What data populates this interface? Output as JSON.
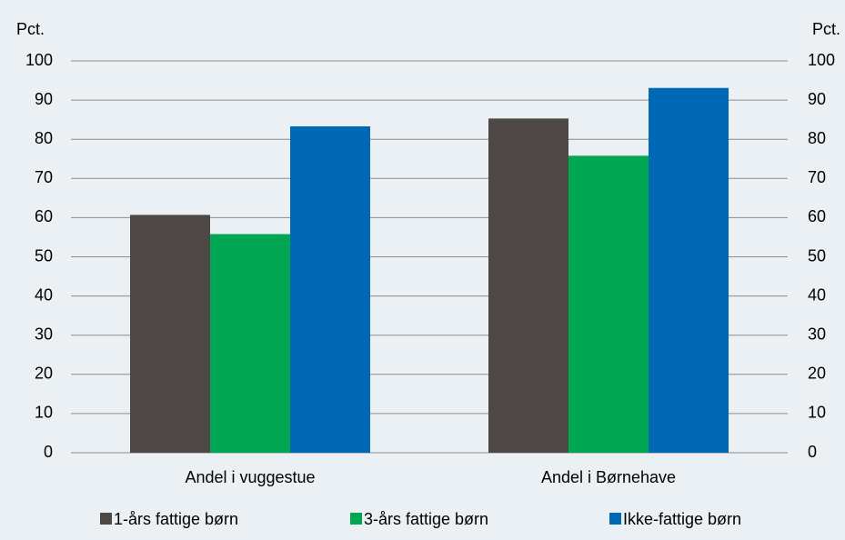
{
  "chart_data": {
    "type": "bar",
    "ylabel": "Pct.",
    "y2label": "Pct.",
    "categories": [
      "Andel i vuggestue",
      "Andel i Børnehave"
    ],
    "series": [
      {
        "name": "1-års fattige børn",
        "color": "#4d4845",
        "values": [
          60.7,
          85.3
        ]
      },
      {
        "name": "3-års fattige børn",
        "color": "#00a651",
        "values": [
          55.8,
          75.8
        ]
      },
      {
        "name": "Ikke-fattige børn",
        "color": "#0068b4",
        "values": [
          83.3,
          93.1
        ]
      }
    ],
    "ylim": [
      0,
      100
    ],
    "yticks": [
      0,
      10,
      20,
      30,
      40,
      50,
      60,
      70,
      80,
      90,
      100
    ],
    "y2lim": [
      0,
      100
    ],
    "y2ticks": [
      0,
      10,
      20,
      30,
      40,
      50,
      60,
      70,
      80,
      90,
      100
    ],
    "grid": true,
    "legend": "bottom"
  }
}
